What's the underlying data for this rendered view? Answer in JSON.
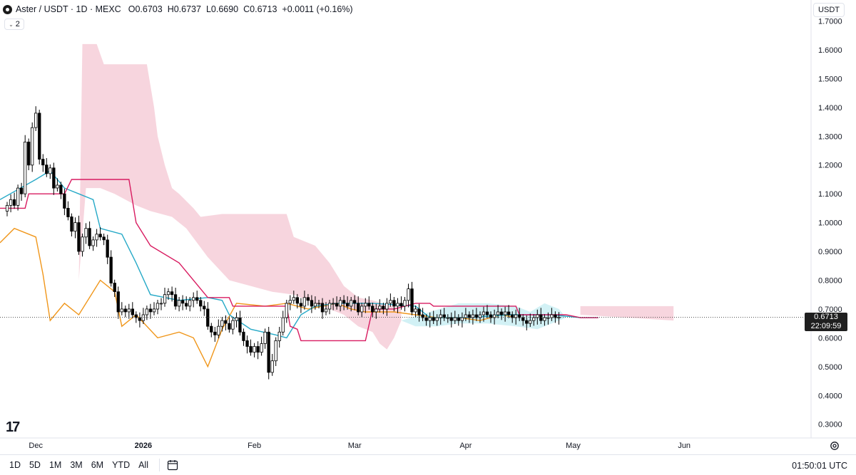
{
  "header": {
    "symbol": "Aster / USDT · 1D · MEXC",
    "ohlc": [
      {
        "label": "O",
        "value": "0.6703"
      },
      {
        "label": "H",
        "value": "0.6737"
      },
      {
        "label": "L",
        "value": "0.6690"
      },
      {
        "label": "C",
        "value": "0.6713"
      }
    ],
    "change": "+0.0011 (+0.16%)",
    "indicator_count": "2"
  },
  "currency_button": "USDT",
  "last_price": {
    "value": "0.6713",
    "countdown": "22:09:59"
  },
  "bottom_bar": {
    "ranges": [
      "1D",
      "5D",
      "1M",
      "3M",
      "6M",
      "YTD",
      "All"
    ],
    "clock": "01:50:01 UTC"
  },
  "colors": {
    "up": "#ffffff",
    "down": "#000000",
    "conversion_line": "#26a9c7",
    "base_line": "#d81b60",
    "lagging_span": "#f0961a",
    "cloud_bearish": "#f4c7d3",
    "cloud_bullish": "#c7edf3"
  },
  "chart_data": {
    "type": "candlestick",
    "title": "Aster / USDT · 1D · MEXC",
    "indicator": "Ichimoku Cloud",
    "y_ticks": [
      1.7,
      1.6,
      1.5,
      1.4,
      1.3,
      1.2,
      1.1,
      1.0,
      0.9,
      0.8,
      0.7,
      0.6,
      0.5,
      0.4,
      0.3
    ],
    "y_tick_labels": [
      "1.7000",
      "1.6000",
      "1.5000",
      "1.4000",
      "1.3000",
      "1.2000",
      "1.1000",
      "1.0000",
      "0.9000",
      "0.8000",
      "0.7000",
      "0.6000",
      "0.5000",
      "0.4000",
      "0.3000"
    ],
    "ylim": [
      0.27,
      1.73
    ],
    "x_tick_labels": [
      "Dec",
      "2026",
      "Feb",
      "Mar",
      "Apr",
      "May",
      "Jun"
    ],
    "x_tick_days": [
      8,
      38,
      69,
      97,
      128,
      158,
      189
    ],
    "xlim": [
      -2,
      224
    ],
    "last_close": 0.6713,
    "closes": [
      1.06,
      1.08,
      1.06,
      1.12,
      1.1,
      1.28,
      1.2,
      1.33,
      1.38,
      1.22,
      1.2,
      1.17,
      1.19,
      1.12,
      1.13,
      1.1,
      1.05,
      1.02,
      0.97,
      1.0,
      0.9,
      0.95,
      0.98,
      0.92,
      0.94,
      0.96,
      0.95,
      0.94,
      0.88,
      0.79,
      0.76,
      0.69,
      0.7,
      0.69,
      0.7,
      0.68,
      0.67,
      0.66,
      0.68,
      0.7,
      0.69,
      0.7,
      0.72,
      0.72,
      0.75,
      0.76,
      0.75,
      0.71,
      0.73,
      0.72,
      0.71,
      0.73,
      0.74,
      0.73,
      0.71,
      0.7,
      0.64,
      0.62,
      0.61,
      0.64,
      0.66,
      0.65,
      0.63,
      0.66,
      0.67,
      0.62,
      0.59,
      0.57,
      0.55,
      0.57,
      0.55,
      0.58,
      0.62,
      0.48,
      0.52,
      0.59,
      0.62,
      0.67,
      0.72,
      0.73,
      0.74,
      0.72,
      0.71,
      0.74,
      0.73,
      0.71,
      0.72,
      0.72,
      0.69,
      0.7,
      0.72,
      0.72,
      0.71,
      0.73,
      0.72,
      0.71,
      0.73,
      0.72,
      0.69,
      0.71,
      0.72,
      0.71,
      0.69,
      0.7,
      0.71,
      0.7,
      0.72,
      0.73,
      0.71,
      0.72,
      0.71,
      0.73,
      0.77,
      0.69,
      0.7,
      0.68,
      0.67,
      0.66,
      0.67,
      0.66,
      0.67,
      0.68,
      0.67,
      0.67,
      0.66,
      0.67,
      0.66,
      0.67,
      0.68,
      0.67,
      0.68,
      0.67,
      0.68,
      0.69,
      0.68,
      0.67,
      0.68,
      0.69,
      0.68,
      0.69,
      0.68,
      0.67,
      0.68,
      0.67,
      0.66,
      0.65,
      0.66,
      0.67,
      0.68,
      0.66,
      0.67,
      0.67,
      0.68,
      0.67,
      0.6713
    ],
    "conversion_line_anchors": [
      [
        -2,
        1.08
      ],
      [
        8,
        1.15
      ],
      [
        12,
        1.18
      ],
      [
        16,
        1.12
      ],
      [
        20,
        1.1
      ],
      [
        24,
        1.08
      ],
      [
        26,
        0.98
      ],
      [
        32,
        0.96
      ],
      [
        36,
        0.86
      ],
      [
        40,
        0.75
      ],
      [
        48,
        0.73
      ],
      [
        56,
        0.74
      ],
      [
        60,
        0.73
      ],
      [
        62,
        0.68
      ],
      [
        68,
        0.63
      ],
      [
        75,
        0.61
      ],
      [
        78,
        0.6
      ],
      [
        82,
        0.68
      ],
      [
        86,
        0.71
      ],
      [
        92,
        0.72
      ],
      [
        102,
        0.72
      ],
      [
        114,
        0.71
      ],
      [
        118,
        0.67
      ],
      [
        128,
        0.67
      ],
      [
        140,
        0.68
      ],
      [
        152,
        0.68
      ],
      [
        160,
        0.67
      ],
      [
        165,
        0.67
      ]
    ],
    "base_line_anchors": [
      [
        -2,
        1.05
      ],
      [
        5,
        1.05
      ],
      [
        6,
        1.1
      ],
      [
        16,
        1.1
      ],
      [
        18,
        1.15
      ],
      [
        34,
        1.15
      ],
      [
        36,
        1.0
      ],
      [
        40,
        0.92
      ],
      [
        48,
        0.86
      ],
      [
        56,
        0.74
      ],
      [
        62,
        0.74
      ],
      [
        63,
        0.71
      ],
      [
        78,
        0.71
      ],
      [
        79,
        0.64
      ],
      [
        81,
        0.63
      ],
      [
        82,
        0.59
      ],
      [
        100,
        0.59
      ],
      [
        102,
        0.7
      ],
      [
        108,
        0.7
      ],
      [
        114,
        0.72
      ],
      [
        118,
        0.72
      ],
      [
        119,
        0.71
      ],
      [
        142,
        0.71
      ],
      [
        143,
        0.68
      ],
      [
        156,
        0.68
      ],
      [
        160,
        0.67
      ],
      [
        165,
        0.67
      ]
    ],
    "lagging_span_anchors": [
      [
        -2,
        0.93
      ],
      [
        2,
        0.98
      ],
      [
        8,
        0.95
      ],
      [
        10,
        0.82
      ],
      [
        12,
        0.66
      ],
      [
        16,
        0.72
      ],
      [
        20,
        0.68
      ],
      [
        26,
        0.8
      ],
      [
        30,
        0.76
      ],
      [
        32,
        0.64
      ],
      [
        36,
        0.68
      ],
      [
        42,
        0.6
      ],
      [
        48,
        0.62
      ],
      [
        52,
        0.6
      ],
      [
        56,
        0.5
      ],
      [
        60,
        0.63
      ],
      [
        64,
        0.72
      ],
      [
        72,
        0.71
      ],
      [
        78,
        0.72
      ],
      [
        84,
        0.7
      ],
      [
        92,
        0.72
      ],
      [
        96,
        0.7
      ],
      [
        100,
        0.69
      ],
      [
        108,
        0.69
      ],
      [
        120,
        0.67
      ],
      [
        126,
        0.67
      ],
      [
        132,
        0.66
      ],
      [
        138,
        0.68
      ],
      [
        142,
        0.67
      ]
    ],
    "cloud_bearish_top_anchors": [
      [
        20,
        0.8
      ],
      [
        21,
        1.62
      ],
      [
        25,
        1.62
      ],
      [
        27,
        1.55
      ],
      [
        39,
        1.55
      ],
      [
        41,
        1.4
      ],
      [
        42,
        1.3
      ],
      [
        44,
        1.2
      ],
      [
        46,
        1.12
      ],
      [
        48,
        1.1
      ],
      [
        52,
        1.05
      ],
      [
        54,
        1.02
      ],
      [
        60,
        1.03
      ],
      [
        78,
        1.03
      ],
      [
        80,
        0.95
      ],
      [
        86,
        0.92
      ],
      [
        90,
        0.86
      ],
      [
        94,
        0.78
      ],
      [
        98,
        0.74
      ],
      [
        102,
        0.73
      ],
      [
        110,
        0.7
      ]
    ],
    "cloud_bearish_bottom_anchors": [
      [
        20,
        0.8
      ],
      [
        22,
        1.12
      ],
      [
        26,
        1.12
      ],
      [
        30,
        1.1
      ],
      [
        36,
        1.06
      ],
      [
        40,
        1.04
      ],
      [
        46,
        1.02
      ],
      [
        50,
        0.98
      ],
      [
        56,
        0.88
      ],
      [
        62,
        0.8
      ],
      [
        68,
        0.78
      ],
      [
        74,
        0.76
      ],
      [
        80,
        0.75
      ],
      [
        86,
        0.72
      ],
      [
        90,
        0.7
      ],
      [
        94,
        0.68
      ],
      [
        98,
        0.64
      ],
      [
        102,
        0.62
      ],
      [
        104,
        0.58
      ],
      [
        106,
        0.56
      ],
      [
        108,
        0.6
      ],
      [
        110,
        0.66
      ]
    ],
    "cloud_bullish_top_anchors": [
      [
        110,
        0.66
      ],
      [
        118,
        0.69
      ],
      [
        126,
        0.72
      ],
      [
        134,
        0.72
      ],
      [
        142,
        0.71
      ],
      [
        146,
        0.69
      ],
      [
        150,
        0.72
      ],
      [
        154,
        0.7
      ],
      [
        156,
        0.67
      ]
    ],
    "cloud_bullish_bottom_anchors": [
      [
        110,
        0.66
      ],
      [
        114,
        0.64
      ],
      [
        120,
        0.64
      ],
      [
        126,
        0.65
      ],
      [
        134,
        0.65
      ],
      [
        142,
        0.64
      ],
      [
        148,
        0.63
      ],
      [
        154,
        0.66
      ],
      [
        156,
        0.67
      ]
    ],
    "cloud_future_anchors": [
      [
        160,
        0.71
      ],
      [
        186,
        0.71
      ],
      [
        186,
        0.66
      ],
      [
        160,
        0.68
      ]
    ]
  }
}
